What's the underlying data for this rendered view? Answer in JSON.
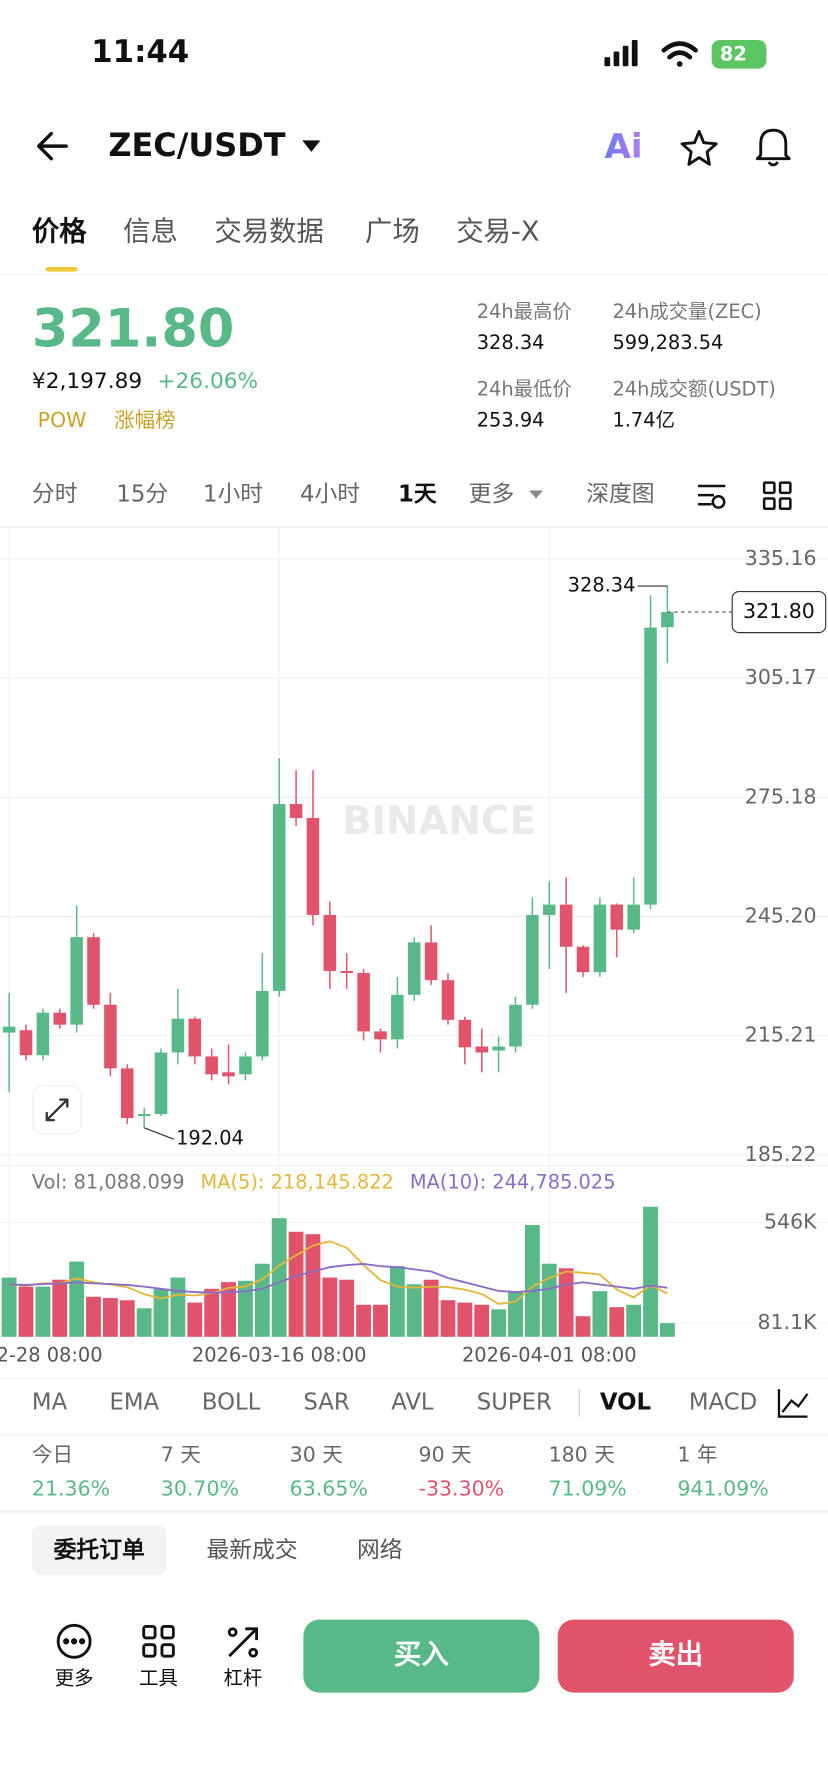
{
  "status": {
    "time": "11:44",
    "battery": "82"
  },
  "header": {
    "pair": "ZEC/USDT",
    "ai": "Ai"
  },
  "tabs": [
    "价格",
    "信息",
    "交易数据",
    "广场",
    "交易-X"
  ],
  "up_color": "#58b888",
  "down_color": "#e0536a",
  "price": {
    "last": "321.80",
    "cny": "¥2,197.89",
    "change": "+26.06%",
    "tags": [
      "POW",
      "涨幅榜"
    ]
  },
  "stats": [
    {
      "label": "24h最高价",
      "value": "328.34"
    },
    {
      "label": "24h成交量(ZEC)",
      "value": "599,283.54"
    },
    {
      "label": "24h最低价",
      "value": "253.94"
    },
    {
      "label": "24h成交额(USDT)",
      "value": "1.74亿"
    }
  ],
  "intervals": [
    "分时",
    "15分",
    "1小时",
    "4小时",
    "1天",
    "更多",
    "深度图"
  ],
  "watermark": "BINANCE",
  "chart_data": {
    "type": "candlestick",
    "categories": [
      "2-28 08:00",
      null,
      null,
      null,
      null,
      null,
      null,
      null,
      null,
      null,
      null,
      null,
      null,
      null,
      null,
      null,
      "2026-03-16 08:00",
      null,
      null,
      null,
      null,
      null,
      null,
      null,
      null,
      null,
      null,
      null,
      null,
      null,
      null,
      null,
      "2026-04-01 08:00",
      null,
      null,
      null,
      null,
      null,
      null,
      null
    ],
    "open": [
      216,
      216.6,
      210.3,
      221,
      218,
      240,
      223,
      207,
      195,
      195.5,
      211,
      219.5,
      210,
      206,
      205.5,
      210,
      226.5,
      273.5,
      270,
      245.6,
      231.5,
      231,
      216.3,
      214.3,
      225.5,
      238.7,
      229.2,
      219.2,
      212.5,
      211.5,
      212.5,
      223,
      245.6,
      248.2,
      237.6,
      231.2,
      248.2,
      241.9,
      248.2,
      318
    ],
    "high": [
      226,
      218,
      222,
      222,
      248,
      241,
      226,
      208,
      197,
      212,
      227,
      220,
      212,
      213,
      211,
      236,
      285,
      282,
      282,
      249,
      236,
      232,
      217,
      230,
      240,
      243,
      231,
      220,
      217,
      215,
      225,
      250,
      254,
      255,
      238,
      250,
      248.5,
      255,
      326,
      328.34
    ],
    "low": [
      201,
      209,
      209,
      217,
      216,
      222,
      205,
      193,
      192.04,
      195,
      208,
      208,
      204,
      203,
      204,
      209,
      225,
      268,
      243,
      227,
      227,
      214,
      211,
      212,
      224,
      228,
      218,
      208,
      206,
      206,
      211,
      222,
      232,
      226,
      230,
      230,
      235,
      241,
      247,
      309
    ],
    "close": [
      217.5,
      210.3,
      221,
      218,
      240,
      223,
      207,
      194.5,
      195.5,
      211,
      219.5,
      210,
      205.5,
      205,
      210,
      226.5,
      273.5,
      270,
      245.6,
      231.5,
      231,
      216.3,
      214.3,
      225.5,
      238.7,
      229.2,
      219.2,
      212.3,
      211,
      212.5,
      223,
      245.6,
      248.2,
      237.6,
      231.2,
      248.2,
      241.9,
      248.2,
      317.9,
      321.8
    ],
    "ylim": [
      182.5,
      343.2
    ],
    "yticks": [
      335.16,
      305.17,
      275.18,
      {
        "value": 245.2,
        "label": "245.20"
      },
      215.21,
      185.22
    ],
    "grid": true,
    "volume": {
      "legend": "Vol: 81,088.099",
      "values": [
        292000,
        250000,
        250000,
        282000,
        366000,
        203000,
        197000,
        187000,
        150000,
        240000,
        292000,
        176000,
        240000,
        271000,
        277000,
        356000,
        567000,
        504000,
        493000,
        292000,
        282000,
        166000,
        166000,
        345000,
        261000,
        282000,
        187000,
        176000,
        166000,
        145000,
        229000,
        535000,
        356000,
        335000,
        113000,
        229000,
        155000,
        166000,
        620000,
        81088.099
      ],
      "ylim": [
        17700,
        662000
      ],
      "yticks": [
        {
          "value": 546000,
          "label": "546K"
        },
        {
          "value": 81100,
          "label": "81.1K"
        }
      ],
      "series": [
        {
          "name": "MA(5): 218,145.822",
          "color": "#e3b73a",
          "values": [
            260000,
            255000,
            265000,
            266000,
            288000,
            270000,
            260000,
            247000,
            215000,
            195000,
            213000,
            209000,
            220000,
            244000,
            251000,
            284000,
            348000,
            395000,
            440000,
            460000,
            430000,
            350000,
            280000,
            250000,
            245000,
            250000,
            248000,
            236000,
            216000,
            170000,
            180000,
            250000,
            290000,
            320000,
            314000,
            306000,
            237000,
            200000,
            257000,
            218145.822
          ]
        },
        {
          "name": "MA(10): 244,785.025",
          "color": "#8a6cc6",
          "values": [
            260000,
            258000,
            262000,
            265000,
            270000,
            265000,
            262000,
            258000,
            250000,
            240000,
            230000,
            225000,
            222000,
            225000,
            228000,
            240000,
            270000,
            300000,
            320000,
            340000,
            350000,
            355000,
            345000,
            340000,
            330000,
            320000,
            290000,
            270000,
            250000,
            230000,
            225000,
            230000,
            240000,
            260000,
            270000,
            260000,
            250000,
            240000,
            255000,
            244785.025
          ]
        }
      ]
    }
  },
  "indicators": [
    "MA",
    "EMA",
    "BOLL",
    "SAR",
    "AVL",
    "SUPER",
    "VOL",
    "MACD"
  ],
  "performance": [
    {
      "label": "今日",
      "value": "21.36%"
    },
    {
      "label": "7 天",
      "value": "30.70%"
    },
    {
      "label": "30 天",
      "value": "63.65%"
    },
    {
      "label": "90 天",
      "value": "-33.30%"
    },
    {
      "label": "180 天",
      "value": "71.09%"
    },
    {
      "label": "1 年",
      "value": "941.09%"
    }
  ],
  "order_tabs": [
    "委托订单",
    "最新成交",
    "网络"
  ],
  "actions": [
    "更多",
    "工具",
    "杠杆"
  ],
  "buttons": {
    "buy": "买入",
    "sell": "卖出"
  }
}
